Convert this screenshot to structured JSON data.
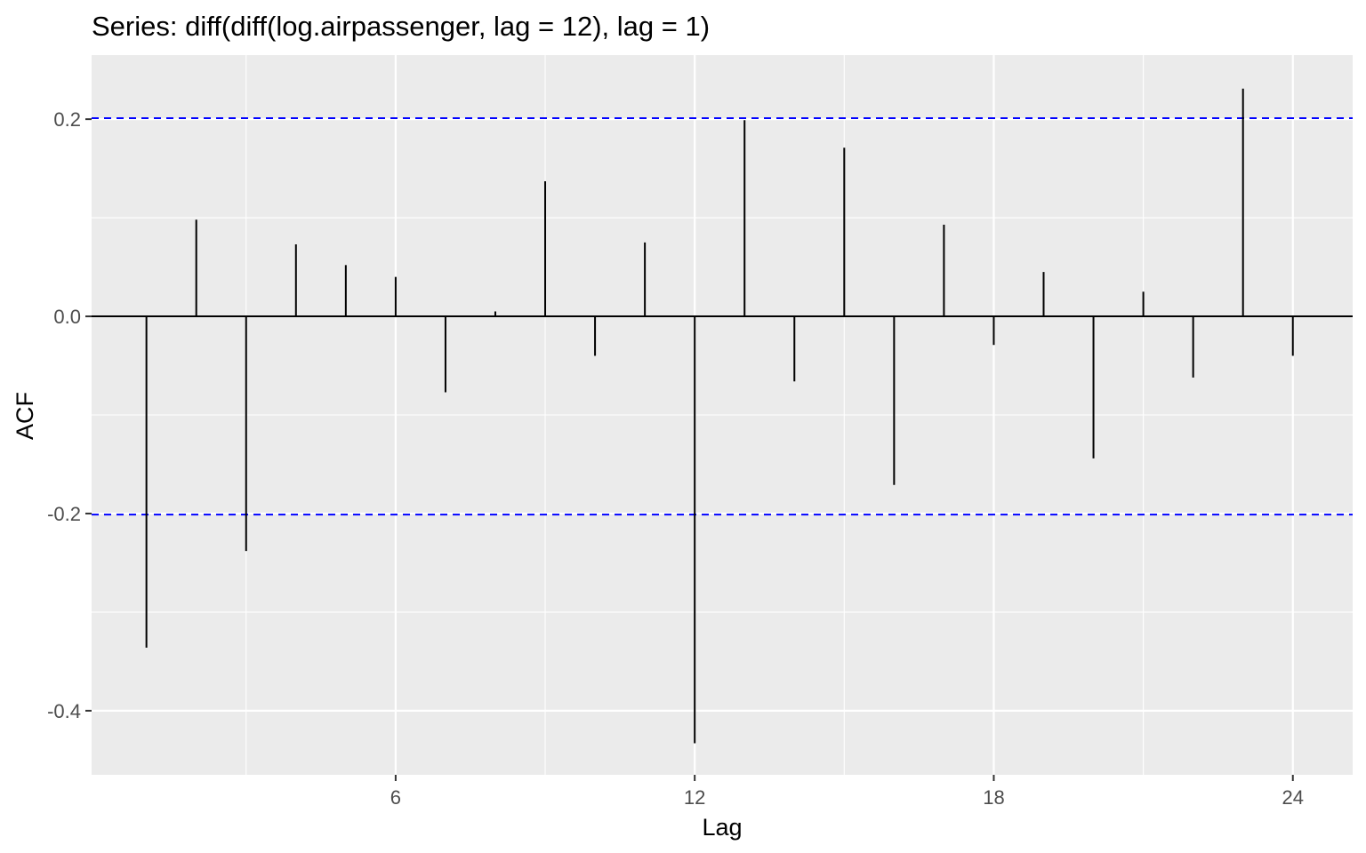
{
  "chart_data": {
    "type": "bar",
    "title": "Series: diff(diff(log.airpassenger, lag = 12), lag = 1)",
    "xlabel": "Lag",
    "ylabel": "ACF",
    "x": [
      1,
      2,
      3,
      4,
      5,
      6,
      7,
      8,
      9,
      10,
      11,
      12,
      13,
      14,
      15,
      16,
      17,
      18,
      19,
      20,
      21,
      22,
      23,
      24
    ],
    "values": [
      -0.336,
      0.098,
      -0.238,
      0.073,
      0.052,
      0.04,
      -0.077,
      0.005,
      0.137,
      -0.04,
      0.075,
      -0.433,
      0.199,
      -0.066,
      0.171,
      -0.171,
      0.093,
      -0.029,
      0.045,
      -0.144,
      0.025,
      -0.062,
      0.231,
      -0.04
    ],
    "xlim": [
      -0.1,
      25.2
    ],
    "ylim": [
      -0.465,
      0.265
    ],
    "x_ticks": [
      6,
      12,
      18,
      24
    ],
    "y_ticks": [
      -0.4,
      -0.2,
      0.0,
      0.2
    ],
    "x_tick_labels": [
      "6",
      "12",
      "18",
      "24"
    ],
    "y_tick_labels": [
      "-0.4",
      "-0.2",
      "0.0",
      "0.2"
    ],
    "confidence_bounds": [
      0.201,
      -0.201
    ],
    "grid": true,
    "colors": {
      "panel": "#ebebeb",
      "grid": "#ffffff",
      "bars": "#000000",
      "bounds": "#0000ff",
      "tick_text": "#4d4d4d"
    }
  }
}
